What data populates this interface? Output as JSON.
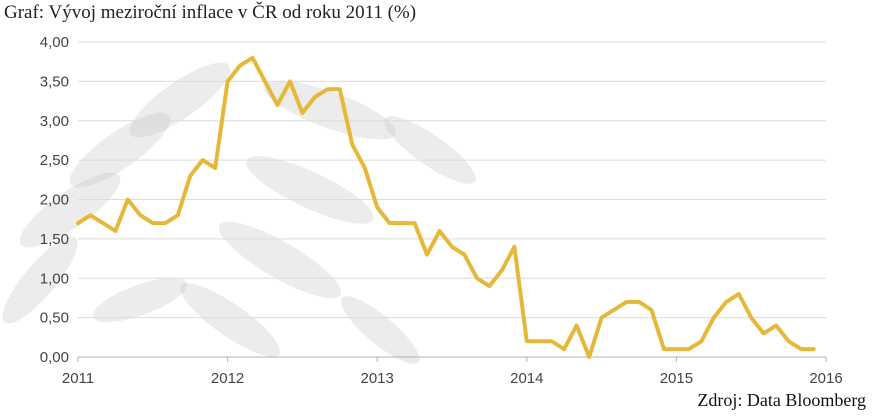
{
  "title": "Graf: Vývoj meziroční inflace v ČR od roku 2011 (%)",
  "source": "Zdroj: Data Bloomberg",
  "colors": {
    "line": "#E6B83A",
    "grid": "#dcdcdc",
    "text": "#444444"
  },
  "chart_data": {
    "type": "line",
    "title": "Graf: Vývoj meziroční inflace v ČR od roku 2011 (%)",
    "xlabel": "",
    "ylabel": "",
    "xlim": [
      2011,
      2016
    ],
    "ylim": [
      0,
      4
    ],
    "grid": true,
    "legend": "none",
    "y_ticks": [
      "0,00",
      "0,50",
      "1,00",
      "1,50",
      "2,00",
      "2,50",
      "3,00",
      "3,50",
      "4,00"
    ],
    "x_ticks": [
      "2011",
      "2012",
      "2013",
      "2014",
      "2015",
      "2016"
    ],
    "series": [
      {
        "x": [
          2011.0,
          2011.083,
          2011.167,
          2011.25,
          2011.333,
          2011.417,
          2011.5,
          2011.583,
          2011.667,
          2011.75,
          2011.833,
          2011.917,
          2012.0,
          2012.083,
          2012.167,
          2012.25,
          2012.333,
          2012.417,
          2012.5,
          2012.583,
          2012.667,
          2012.75,
          2012.833,
          2012.917,
          2013.0,
          2013.083,
          2013.167,
          2013.25,
          2013.333,
          2013.417,
          2013.5,
          2013.583,
          2013.667,
          2013.75,
          2013.833,
          2013.917,
          2014.0,
          2014.083,
          2014.167,
          2014.25,
          2014.333,
          2014.417,
          2014.5,
          2014.583,
          2014.667,
          2014.75,
          2014.833,
          2014.917,
          2015.0,
          2015.083,
          2015.167,
          2015.25,
          2015.333,
          2015.417,
          2015.5,
          2015.583,
          2015.667,
          2015.75,
          2015.833,
          2015.917
        ],
        "values": [
          1.7,
          1.8,
          1.7,
          1.6,
          2.0,
          1.8,
          1.7,
          1.7,
          1.8,
          2.3,
          2.5,
          2.4,
          3.5,
          3.7,
          3.8,
          3.5,
          3.2,
          3.5,
          3.1,
          3.3,
          3.4,
          3.4,
          2.7,
          2.4,
          1.9,
          1.7,
          1.7,
          1.7,
          1.3,
          1.6,
          1.4,
          1.3,
          1.0,
          0.9,
          1.1,
          1.4,
          0.2,
          0.2,
          0.2,
          0.1,
          0.4,
          0.0,
          0.5,
          0.6,
          0.7,
          0.7,
          0.6,
          0.1,
          0.1,
          0.1,
          0.2,
          0.5,
          0.7,
          0.8,
          0.5,
          0.3,
          0.4,
          0.2,
          0.1,
          0.1
        ]
      }
    ]
  }
}
